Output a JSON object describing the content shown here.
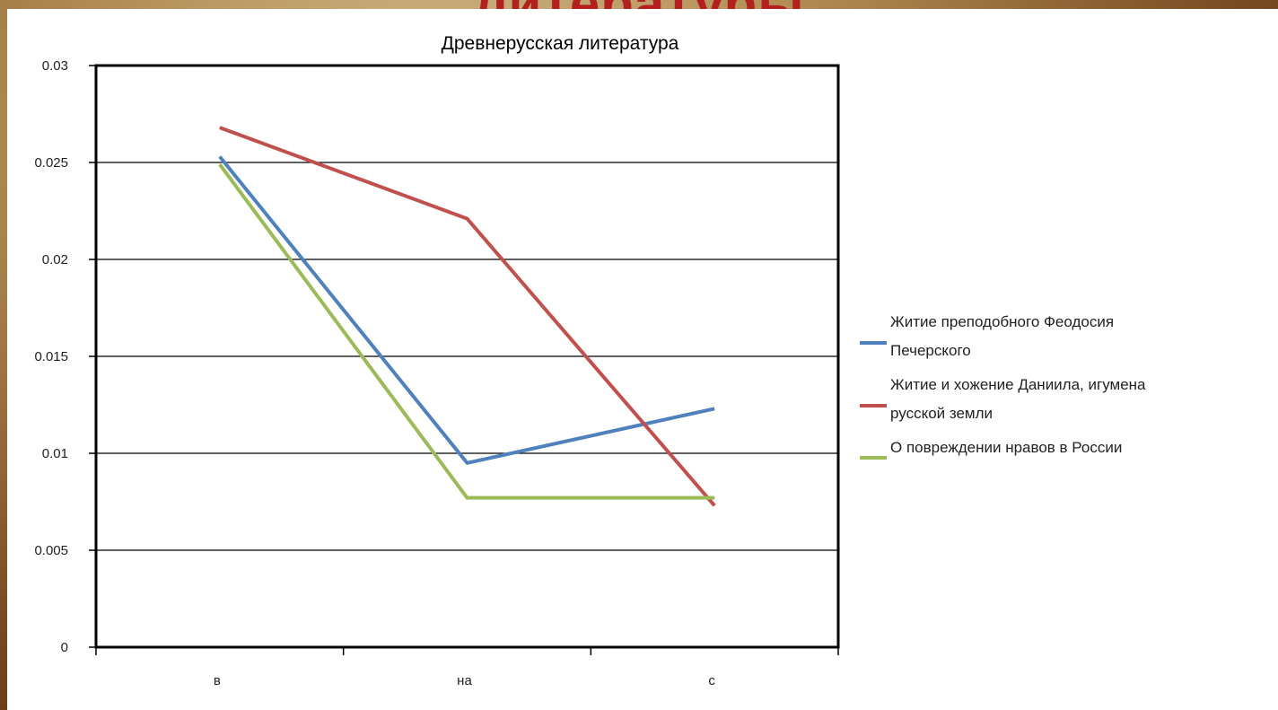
{
  "slide": {
    "background_title": "литературы"
  },
  "colors": {
    "title_red": "#b3201f",
    "series_blue": "#4f81bd",
    "series_red": "#c0504d",
    "series_green": "#9bbb59"
  },
  "chart_data": {
    "type": "line",
    "title": "Древнерусская литература",
    "xlabel": "",
    "ylabel": "",
    "categories": [
      "в",
      "на",
      "с"
    ],
    "ylim": [
      0,
      0.03
    ],
    "yticks": [
      "0",
      "0.005",
      "0.01",
      "0.015",
      "0.02",
      "0.025",
      "0.03"
    ],
    "grid": true,
    "legend_position": "right",
    "series": [
      {
        "name": "Житие преподобного Феодосия Печерского",
        "name_lines": [
          "Житие преподобного Феодосия",
          "Печерского"
        ],
        "color": "#4f81bd",
        "values": [
          0.0253,
          0.0095,
          0.0123
        ]
      },
      {
        "name": "Житие и хожение Даниила, игумена русской земли",
        "name_lines": [
          "Житие и хожение Даниила, игумена",
          "русской земли"
        ],
        "color": "#c0504d",
        "values": [
          0.0268,
          0.0221,
          0.0073
        ]
      },
      {
        "name": "О повреждении нравов в России",
        "name_lines": [
          "О повреждении нравов в России"
        ],
        "color": "#9bbb59",
        "values": [
          0.0249,
          0.0077,
          0.0077
        ]
      }
    ]
  }
}
